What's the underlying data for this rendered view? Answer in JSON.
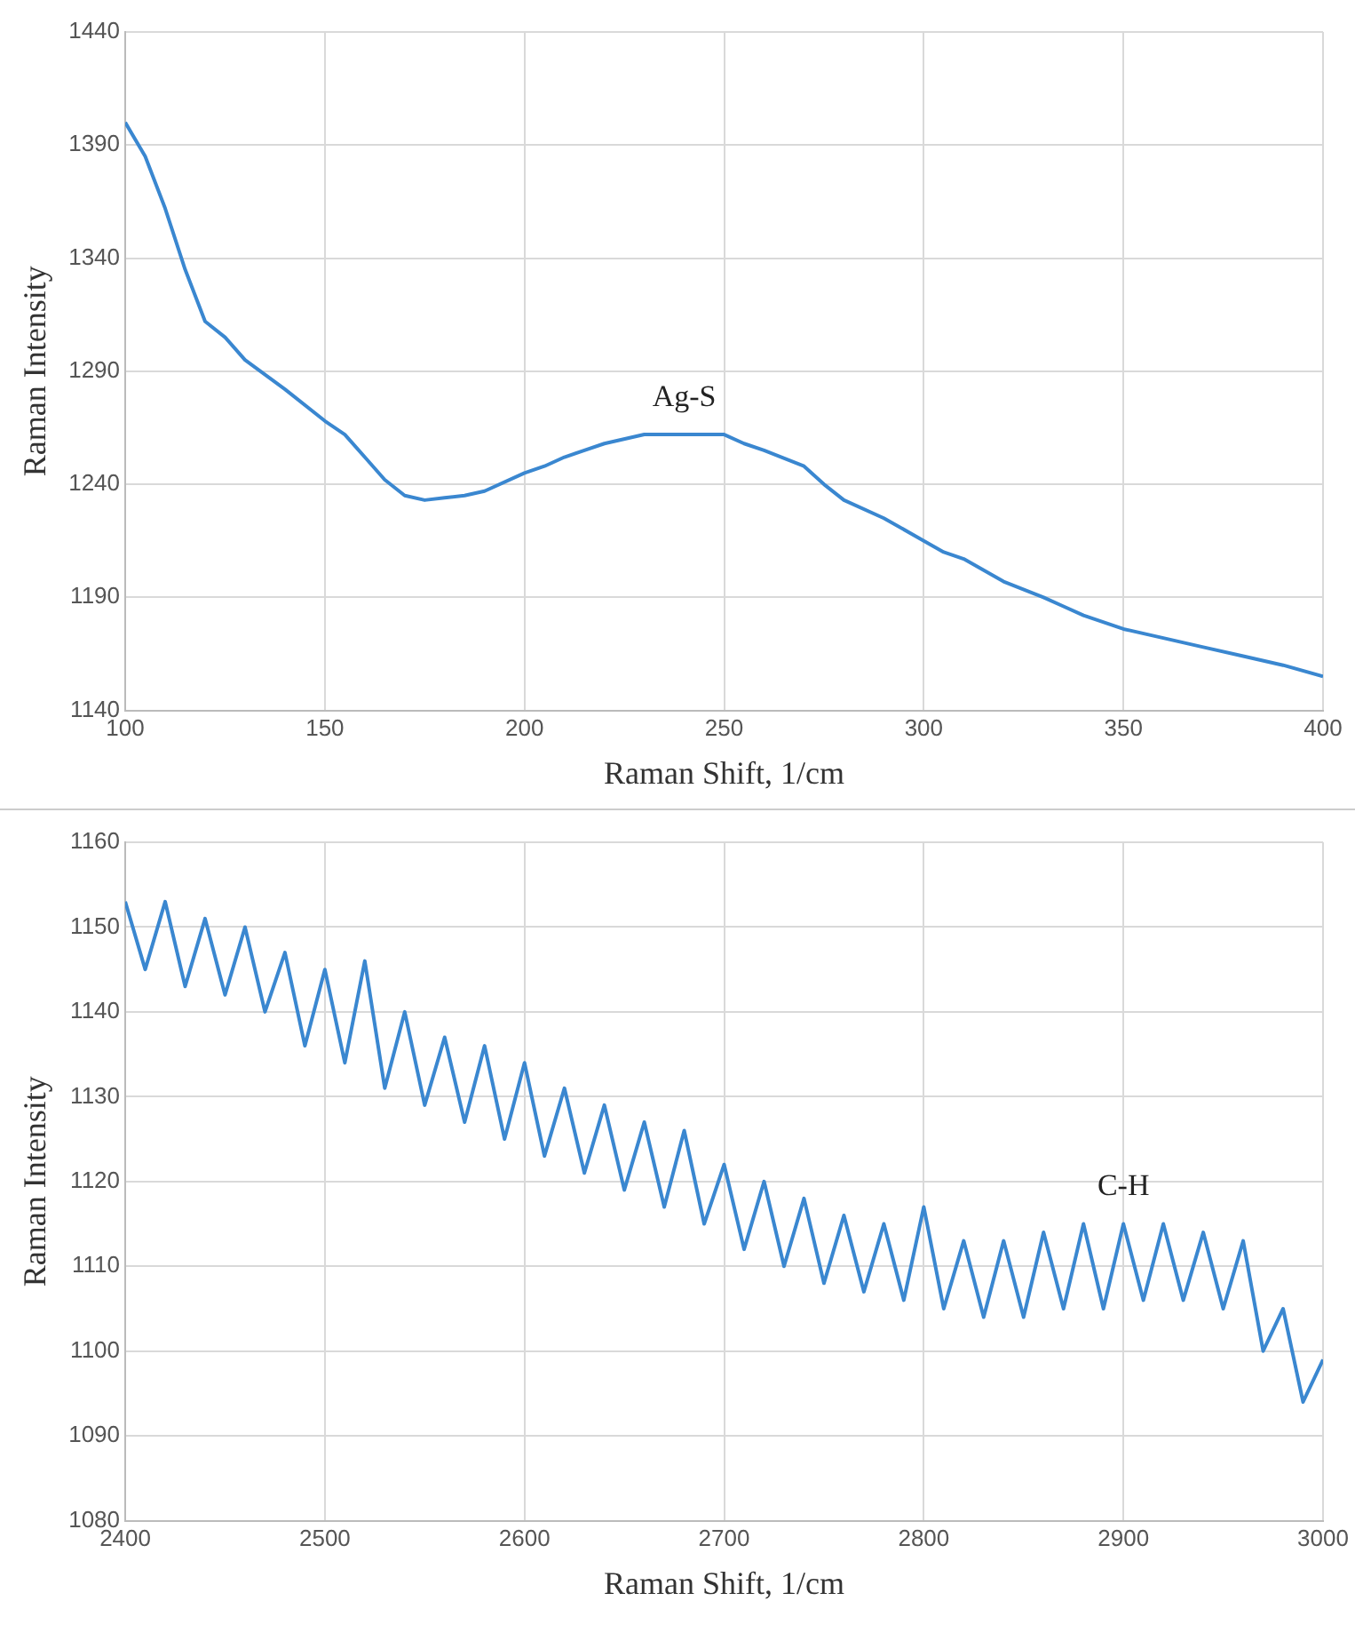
{
  "chart_data": [
    {
      "type": "line",
      "xlabel": "Raman Shift, 1/cm",
      "ylabel": "Raman Intensity",
      "xlim": [
        100,
        400
      ],
      "xticks": [
        100,
        150,
        200,
        250,
        300,
        350,
        400
      ],
      "ylim": [
        1140,
        1440
      ],
      "yticks": [
        1140,
        1190,
        1240,
        1290,
        1340,
        1390,
        1440
      ],
      "grid": true,
      "marker": "none",
      "x": [
        100,
        105,
        110,
        115,
        120,
        125,
        130,
        140,
        150,
        155,
        160,
        165,
        170,
        175,
        180,
        185,
        190,
        200,
        205,
        210,
        215,
        220,
        230,
        240,
        250,
        255,
        260,
        270,
        275,
        280,
        290,
        300,
        305,
        310,
        320,
        330,
        335,
        340,
        350,
        360,
        370,
        380,
        390,
        400
      ],
      "series": [
        {
          "color": "#3a87d0",
          "values": [
            1400,
            1385,
            1362,
            1335,
            1312,
            1305,
            1295,
            1282,
            1268,
            1262,
            1252,
            1242,
            1235,
            1233,
            1234,
            1235,
            1237,
            1245,
            1248,
            1252,
            1255,
            1258,
            1262,
            1262,
            1262,
            1258,
            1255,
            1248,
            1240,
            1233,
            1225,
            1215,
            1210,
            1207,
            1197,
            1190,
            1186,
            1182,
            1176,
            1172,
            1168,
            1164,
            1160,
            1155
          ]
        }
      ],
      "annotations": [
        {
          "text": "Ag-S",
          "x": 240,
          "y": 1262
        }
      ]
    },
    {
      "type": "line",
      "xlabel": "Raman Shift, 1/cm",
      "ylabel": "Raman Intensity",
      "xlim": [
        2400,
        3000
      ],
      "xticks": [
        2400,
        2500,
        2600,
        2700,
        2800,
        2900,
        3000
      ],
      "ylim": [
        1080,
        1160
      ],
      "yticks": [
        1080,
        1090,
        1100,
        1110,
        1120,
        1130,
        1140,
        1150,
        1160
      ],
      "grid": true,
      "marker": "none",
      "x": [
        2400,
        2410,
        2420,
        2430,
        2440,
        2450,
        2460,
        2470,
        2480,
        2490,
        2500,
        2510,
        2520,
        2530,
        2540,
        2550,
        2560,
        2570,
        2580,
        2590,
        2600,
        2610,
        2620,
        2630,
        2640,
        2650,
        2660,
        2670,
        2680,
        2690,
        2700,
        2710,
        2720,
        2730,
        2740,
        2750,
        2760,
        2770,
        2780,
        2790,
        2800,
        2810,
        2820,
        2830,
        2840,
        2850,
        2860,
        2870,
        2880,
        2890,
        2900,
        2910,
        2920,
        2930,
        2940,
        2950,
        2960,
        2970,
        2980,
        2990,
        3000
      ],
      "series": [
        {
          "color": "#3a87d0",
          "values": [
            1153,
            1145,
            1153,
            1143,
            1151,
            1142,
            1150,
            1140,
            1147,
            1136,
            1145,
            1134,
            1146,
            1131,
            1140,
            1129,
            1137,
            1127,
            1136,
            1125,
            1134,
            1123,
            1131,
            1121,
            1129,
            1119,
            1127,
            1117,
            1126,
            1115,
            1122,
            1112,
            1120,
            1110,
            1118,
            1108,
            1116,
            1107,
            1115,
            1106,
            1117,
            1105,
            1113,
            1104,
            1113,
            1104,
            1114,
            1105,
            1115,
            1105,
            1115,
            1106,
            1115,
            1106,
            1114,
            1105,
            1113,
            1100,
            1105,
            1094,
            1099
          ]
        }
      ],
      "annotations": [
        {
          "text": "C-H",
          "x": 2900,
          "y": 1115
        }
      ]
    }
  ]
}
